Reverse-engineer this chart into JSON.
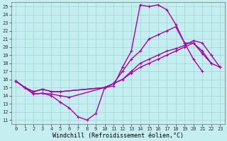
{
  "xlabel": "Windchill (Refroidissement éolien,°C)",
  "xlim": [
    -0.5,
    23.5
  ],
  "ylim": [
    10.5,
    25.5
  ],
  "xticks": [
    0,
    1,
    2,
    3,
    4,
    5,
    6,
    7,
    8,
    9,
    10,
    11,
    12,
    13,
    14,
    15,
    16,
    17,
    18,
    19,
    20,
    21,
    22,
    23
  ],
  "yticks": [
    11,
    12,
    13,
    14,
    15,
    16,
    17,
    18,
    19,
    20,
    21,
    22,
    23,
    24,
    25
  ],
  "bg_color": "#c5eef0",
  "grid_color": "#9fd4d8",
  "line_color": "#aa00aa",
  "lines": [
    {
      "x": [
        0,
        1,
        2,
        3,
        4,
        5,
        6,
        7,
        8,
        9,
        10,
        11,
        12,
        13,
        14,
        15,
        16,
        17,
        18,
        19,
        20,
        21
      ],
      "y": [
        15.8,
        15.0,
        14.2,
        14.3,
        14.0,
        13.2,
        12.5,
        11.4,
        11.0,
        11.8,
        15.0,
        15.2,
        17.5,
        19.5,
        25.2,
        25.0,
        25.2,
        24.6,
        22.8,
        20.5,
        18.5,
        17.0
      ]
    },
    {
      "x": [
        0,
        1,
        2,
        3,
        4,
        5,
        6,
        10,
        11,
        12,
        13,
        14,
        15,
        16,
        17,
        18,
        19,
        20,
        21,
        22
      ],
      "y": [
        15.8,
        15.0,
        14.2,
        14.3,
        14.2,
        14.0,
        13.8,
        15.0,
        15.5,
        17.0,
        18.5,
        19.5,
        21.0,
        21.5,
        22.0,
        22.5,
        20.5,
        20.5,
        19.2,
        18.0
      ]
    },
    {
      "x": [
        0,
        1,
        2,
        3,
        4,
        5,
        10,
        11,
        12,
        13,
        14,
        15,
        16,
        17,
        18,
        19,
        20,
        21,
        22,
        23
      ],
      "y": [
        15.8,
        15.0,
        14.5,
        14.8,
        14.5,
        14.5,
        15.0,
        15.5,
        16.0,
        16.8,
        17.5,
        18.0,
        18.5,
        19.0,
        19.5,
        20.0,
        20.5,
        19.5,
        18.0,
        17.5
      ]
    },
    {
      "x": [
        0,
        1,
        2,
        3,
        4,
        5,
        10,
        11,
        12,
        13,
        14,
        15,
        16,
        17,
        18,
        19,
        20,
        21,
        22,
        23
      ],
      "y": [
        15.8,
        15.0,
        14.5,
        14.8,
        14.5,
        14.5,
        15.0,
        15.5,
        16.0,
        17.0,
        18.0,
        18.5,
        19.0,
        19.5,
        19.8,
        20.2,
        20.8,
        20.5,
        19.0,
        17.5
      ]
    }
  ],
  "linewidth": 1.0,
  "marker": "+",
  "marker_size": 3.5,
  "marker_lw": 0.8,
  "tick_fontsize": 5.0,
  "xlabel_fontsize": 6.0
}
